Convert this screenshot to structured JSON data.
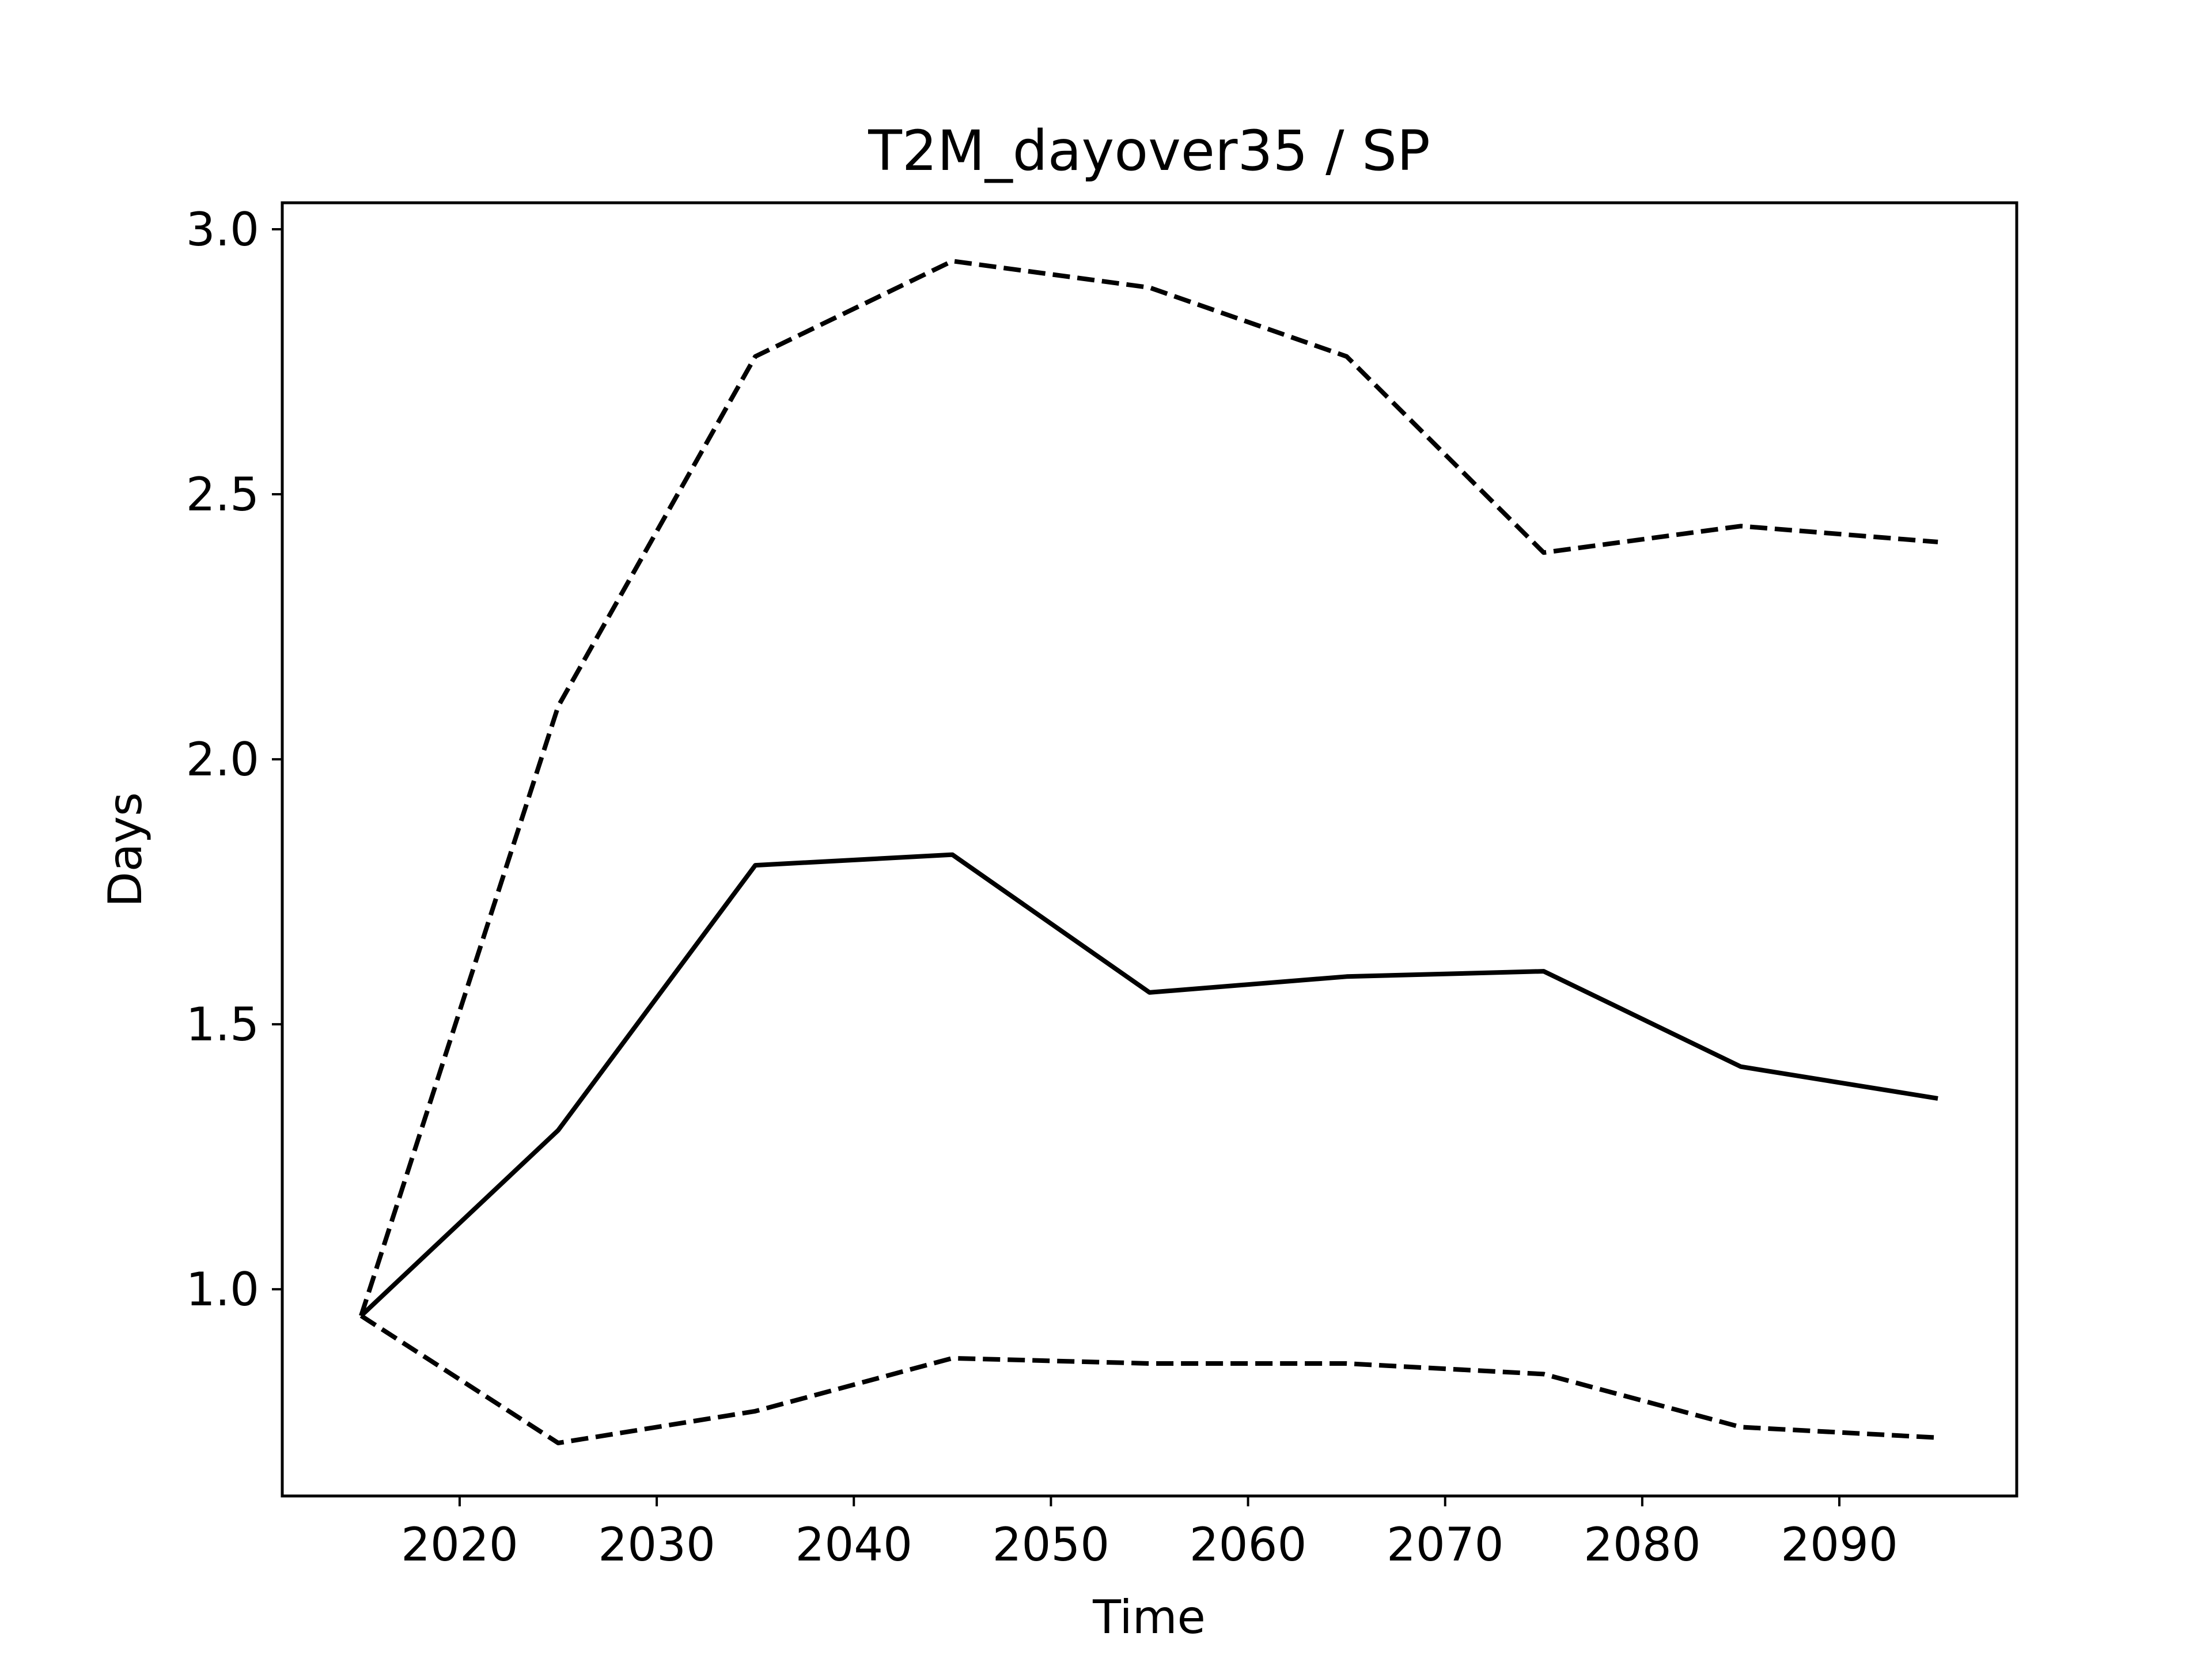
{
  "chart_data": {
    "type": "line",
    "title": "T2M_dayover35 / SP",
    "xlabel": "Time",
    "ylabel": "Days",
    "x": [
      2015,
      2025,
      2035,
      2045,
      2055,
      2065,
      2075,
      2085,
      2095
    ],
    "xlim": [
      2011,
      2099
    ],
    "ylim": [
      0.61,
      3.05
    ],
    "xticks": [
      2020,
      2030,
      2040,
      2050,
      2060,
      2070,
      2080,
      2090
    ],
    "yticks": [
      1.0,
      1.5,
      2.0,
      2.5,
      3.0
    ],
    "xtick_labels": [
      "2020",
      "2030",
      "2040",
      "2050",
      "2060",
      "2070",
      "2080",
      "2090"
    ],
    "ytick_labels": [
      "1.0",
      "1.5",
      "2.0",
      "2.5",
      "3.0"
    ],
    "grid": false,
    "series": [
      {
        "values": [
          0.95,
          2.1,
          2.76,
          2.94,
          2.89,
          2.76,
          2.39,
          2.44,
          2.41
        ],
        "style": "dashed",
        "color": "#000000"
      },
      {
        "values": [
          0.95,
          1.3,
          1.8,
          1.82,
          1.56,
          1.59,
          1.6,
          1.42,
          1.36
        ],
        "style": "solid",
        "color": "#000000"
      },
      {
        "values": [
          0.95,
          0.71,
          0.77,
          0.87,
          0.86,
          0.86,
          0.84,
          0.74,
          0.72
        ],
        "style": "dashed",
        "color": "#000000"
      }
    ]
  }
}
